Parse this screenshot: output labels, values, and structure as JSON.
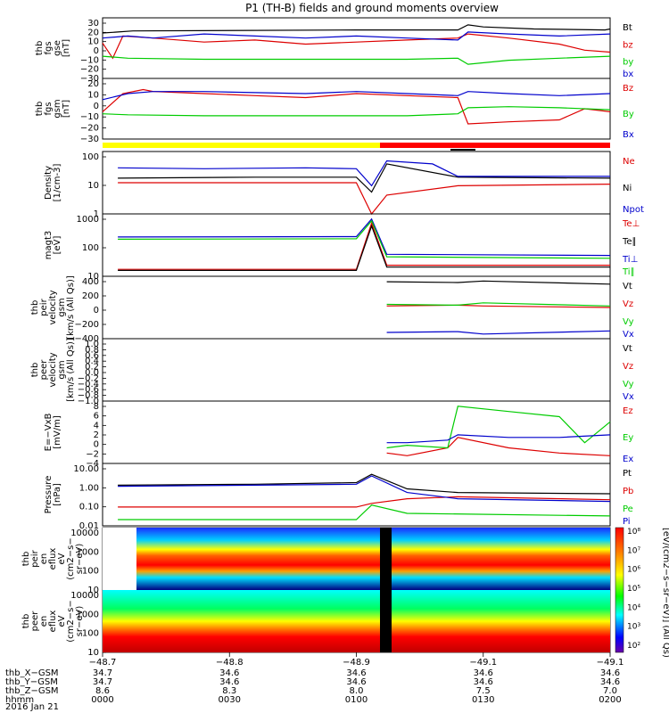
{
  "title": "P1 (TH-B) fields and ground moments overview",
  "chart_data": [
    {
      "type": "line",
      "panel": "fgs_gse",
      "ylabel": [
        "thb",
        "fgs",
        "gse",
        "[nT]"
      ],
      "ytick_labels": [
        "30",
        "20",
        "10",
        "0",
        "−10",
        "−20",
        "−30"
      ],
      "ylim": [
        -30,
        30
      ],
      "series": [
        {
          "name": "Bt",
          "color": "#000000",
          "x": [
            0.0,
            0.03,
            0.06,
            0.5,
            0.7,
            0.72,
            0.75,
            0.85,
            0.99,
            1.0
          ],
          "y": [
            15,
            16,
            17,
            18,
            18,
            23,
            21,
            19,
            18,
            19
          ]
        },
        {
          "name": "bz",
          "color": "#dd0000",
          "x": [
            0.0,
            0.02,
            0.04,
            0.1,
            0.2,
            0.3,
            0.4,
            0.5,
            0.6,
            0.7,
            0.72,
            0.8,
            0.9,
            0.95,
            1.0
          ],
          "y": [
            5,
            -10,
            12,
            10,
            6,
            8,
            4,
            6,
            8,
            10,
            14,
            10,
            4,
            -2,
            -4
          ]
        },
        {
          "name": "by",
          "color": "#00cc00",
          "x": [
            0.0,
            0.05,
            0.2,
            0.4,
            0.5,
            0.6,
            0.7,
            0.72,
            0.8,
            0.9,
            1.0
          ],
          "y": [
            -8,
            -10,
            -11,
            -11,
            -11,
            -11,
            -10,
            -16,
            -12,
            -10,
            -8
          ]
        },
        {
          "name": "bx",
          "color": "#0000cc",
          "x": [
            0.0,
            0.05,
            0.1,
            0.2,
            0.3,
            0.4,
            0.5,
            0.6,
            0.7,
            0.72,
            0.8,
            0.9,
            1.0
          ],
          "y": [
            10,
            12,
            10,
            14,
            12,
            10,
            12,
            10,
            8,
            16,
            14,
            12,
            14
          ]
        }
      ]
    },
    {
      "type": "line",
      "panel": "fgs_gsm",
      "ylabel": [
        "thb",
        "fgs",
        "gsm",
        "[nT]"
      ],
      "ytick_labels": [
        "20",
        "10",
        "0",
        "−10",
        "−20",
        "−30"
      ],
      "ylim": [
        -35,
        25
      ],
      "series": [
        {
          "name": "Bz",
          "color": "#dd0000",
          "x": [
            0.0,
            0.04,
            0.08,
            0.1,
            0.2,
            0.3,
            0.4,
            0.5,
            0.6,
            0.7,
            0.72,
            0.8,
            0.9,
            0.95,
            1.0
          ],
          "y": [
            -8,
            10,
            14,
            12,
            10,
            8,
            6,
            10,
            8,
            6,
            -20,
            -18,
            -16,
            -5,
            -8
          ]
        },
        {
          "name": "By",
          "color": "#00cc00",
          "x": [
            0.0,
            0.05,
            0.2,
            0.4,
            0.5,
            0.6,
            0.7,
            0.72,
            0.8,
            0.9,
            1.0
          ],
          "y": [
            -10,
            -11,
            -12,
            -12,
            -12,
            -12,
            -10,
            -4,
            -3,
            -4,
            -6
          ]
        },
        {
          "name": "Bx",
          "color": "#0000cc",
          "x": [
            0.0,
            0.05,
            0.1,
            0.2,
            0.3,
            0.4,
            0.5,
            0.6,
            0.7,
            0.72,
            0.8,
            0.9,
            1.0
          ],
          "y": [
            4,
            10,
            12,
            12,
            11,
            10,
            12,
            10,
            8,
            12,
            10,
            8,
            10
          ]
        }
      ]
    },
    {
      "type": "line",
      "panel": "density",
      "ylabel": [
        "Density",
        "[1/cm-3]"
      ],
      "yscale": "log",
      "ytick_labels": [
        "100",
        "10",
        "1"
      ],
      "ylim": [
        1,
        100
      ],
      "series": [
        {
          "name": "Ne",
          "color": "#dd0000",
          "x": [
            0.03,
            0.5,
            0.53,
            0.56,
            0.7,
            1.0
          ],
          "y": [
            10,
            10,
            1,
            4,
            8,
            9
          ]
        },
        {
          "name": "Ni",
          "color": "#000000",
          "x": [
            0.03,
            0.3,
            0.5,
            0.53,
            0.56,
            0.7,
            1.0
          ],
          "y": [
            14,
            15,
            15,
            5,
            40,
            15,
            14
          ]
        },
        {
          "name": "Npot",
          "color": "#0000cc",
          "x": [
            0.03,
            0.2,
            0.4,
            0.5,
            0.53,
            0.56,
            0.65,
            0.7,
            1.0
          ],
          "y": [
            30,
            28,
            30,
            28,
            8,
            50,
            40,
            16,
            16
          ]
        }
      ]
    },
    {
      "type": "line",
      "panel": "temperature",
      "ylabel": [
        "magt3",
        "[eV]"
      ],
      "yscale": "log",
      "ytick_labels": [
        "1000",
        "100",
        "10"
      ],
      "ylim": [
        10,
        5000
      ],
      "series": [
        {
          "name": "Te⊥",
          "color": "#dd0000",
          "x": [
            0.03,
            0.5,
            0.53,
            0.56,
            1.0
          ],
          "y": [
            20,
            20,
            2000,
            30,
            30
          ]
        },
        {
          "name": "Te∥",
          "color": "#000000",
          "x": [
            0.03,
            0.5,
            0.53,
            0.56,
            1.0
          ],
          "y": [
            18,
            18,
            1500,
            25,
            25
          ]
        },
        {
          "name": "Ti⊥",
          "color": "#0000cc",
          "x": [
            0.03,
            0.5,
            0.53,
            0.56,
            1.0
          ],
          "y": [
            500,
            520,
            3000,
            90,
            80
          ]
        },
        {
          "name": "Ti∥",
          "color": "#00cc00",
          "x": [
            0.03,
            0.5,
            0.53,
            0.56,
            1.0
          ],
          "y": [
            400,
            420,
            2500,
            70,
            60
          ]
        }
      ]
    },
    {
      "type": "line",
      "panel": "peir_velocity",
      "ylabel": [
        "thb",
        "peir",
        "velocity",
        "gsm",
        "[km/s (All Qs)]"
      ],
      "ytick_labels": [
        "400",
        "200",
        "0",
        "−200",
        "−400"
      ],
      "ylim": [
        -400,
        400
      ],
      "series": [
        {
          "name": "Vt",
          "color": "#000000",
          "x": [
            0.56,
            0.7,
            0.75,
            1.0
          ],
          "y": [
            330,
            320,
            340,
            300
          ]
        },
        {
          "name": "Vz",
          "color": "#dd0000",
          "x": [
            0.56,
            0.7,
            0.75,
            1.0
          ],
          "y": [
            20,
            30,
            20,
            0
          ]
        },
        {
          "name": "Vy",
          "color": "#00cc00",
          "x": [
            0.56,
            0.7,
            0.75,
            1.0
          ],
          "y": [
            40,
            30,
            60,
            20
          ]
        },
        {
          "name": "Vx",
          "color": "#0000cc",
          "x": [
            0.56,
            0.7,
            0.75,
            1.0
          ],
          "y": [
            -320,
            -310,
            -340,
            -300
          ]
        }
      ]
    },
    {
      "type": "line",
      "panel": "peer_velocity",
      "ylabel": [
        "thb",
        "peer",
        "velocity",
        "gsm",
        "[km/s (All Qs)]"
      ],
      "ytick_labels": [
        "1.0",
        "0.8",
        "0.6",
        "0.4",
        "0.2",
        "0.0",
        "−0.2",
        "−0.4",
        "−0.6",
        "−0.8",
        "−1.0"
      ],
      "ylim": [
        -1,
        1
      ],
      "series": [
        {
          "name": "Vt",
          "color": "#000000"
        },
        {
          "name": "Vz",
          "color": "#dd0000"
        },
        {
          "name": "Vy",
          "color": "#00cc00"
        },
        {
          "name": "Vx",
          "color": "#0000cc"
        }
      ]
    },
    {
      "type": "line",
      "panel": "efield",
      "ylabel": [
        "E=−VxB",
        "[mV/m]"
      ],
      "ytick_labels": [
        "8",
        "6",
        "4",
        "2",
        "0",
        "−2",
        "−4"
      ],
      "ylim": [
        -4,
        8
      ],
      "series": [
        {
          "name": "Ez",
          "color": "#dd0000",
          "x": [
            0.56,
            0.6,
            0.68,
            0.7,
            0.8,
            0.9,
            1.0
          ],
          "y": [
            -2,
            -2.5,
            -1,
            1,
            -1,
            -2,
            -2.5
          ]
        },
        {
          "name": "Ey",
          "color": "#00cc00",
          "x": [
            0.56,
            0.6,
            0.68,
            0.7,
            0.8,
            0.9,
            0.95,
            1.0
          ],
          "y": [
            -1,
            -0.5,
            -1,
            7,
            6,
            5,
            0,
            4
          ]
        },
        {
          "name": "Ex",
          "color": "#0000cc",
          "x": [
            0.56,
            0.6,
            0.68,
            0.7,
            0.8,
            0.9,
            1.0
          ],
          "y": [
            0,
            0,
            0.5,
            1.5,
            1,
            1,
            1.5
          ]
        }
      ]
    },
    {
      "type": "line",
      "panel": "pressure",
      "ylabel": [
        "Pressure",
        "[nPa]"
      ],
      "yscale": "log",
      "ytick_labels": [
        "10.00",
        "1.00",
        "0.10",
        "0.01"
      ],
      "ylim": [
        0.01,
        10
      ],
      "series": [
        {
          "name": "Pt",
          "color": "#000000",
          "x": [
            0.03,
            0.3,
            0.5,
            0.53,
            0.6,
            0.7,
            1.0
          ],
          "y": [
            0.9,
            1.0,
            1.2,
            3.0,
            0.6,
            0.4,
            0.35
          ]
        },
        {
          "name": "Pb",
          "color": "#dd0000",
          "x": [
            0.03,
            0.5,
            0.53,
            0.6,
            0.7,
            1.0
          ],
          "y": [
            0.08,
            0.08,
            0.12,
            0.2,
            0.25,
            0.18
          ]
        },
        {
          "name": "Pe",
          "color": "#00cc00",
          "x": [
            0.03,
            0.5,
            0.53,
            0.6,
            1.0
          ],
          "y": [
            0.02,
            0.02,
            0.1,
            0.04,
            0.03
          ]
        },
        {
          "name": "Pi",
          "color": "#0000cc",
          "x": [
            0.03,
            0.3,
            0.5,
            0.53,
            0.6,
            0.7,
            1.0
          ],
          "y": [
            0.8,
            0.9,
            1.0,
            2.5,
            0.4,
            0.2,
            0.15
          ]
        }
      ]
    },
    {
      "type": "heatmap",
      "panel": "peir_spectrogram",
      "ylabel": [
        "thb",
        "peir",
        "en",
        "eflux",
        "eV",
        "(cm2−s−",
        "sr−eV)"
      ],
      "yscale": "log",
      "ytick_labels": [
        "10000",
        "1000",
        "100",
        "10"
      ]
    },
    {
      "type": "heatmap",
      "panel": "peer_spectrogram",
      "ylabel": [
        "thb",
        "peer",
        "en",
        "eflux",
        "eV",
        "(cm2−s−",
        "sr−eV)"
      ],
      "yscale": "log",
      "ytick_labels": [
        "10000",
        "1000",
        "100",
        "10"
      ]
    }
  ],
  "colorbar": {
    "tick_labels": [
      "10⁸",
      "10⁷",
      "10⁶",
      "10⁵",
      "10⁴",
      "10³",
      "10²"
    ],
    "label": "[eV/(cm2−s−sr−eV)] (All Qs)"
  },
  "xaxis": {
    "tick_values": [
      "−48.7",
      "−48.8",
      "−48.9",
      "−49.1",
      "−49.1"
    ],
    "rows": [
      {
        "label": "thb_X−GSM",
        "values": [
          "34.7",
          "34.6",
          "34.6",
          "34.6",
          "34.6"
        ]
      },
      {
        "label": "thb_Y−GSM",
        "values": [
          "34.7",
          "34.6",
          "34.6",
          "34.6",
          "34.6"
        ]
      },
      {
        "label": "thb_Z−GSM",
        "values": [
          "8.6",
          "8.3",
          "8.0",
          "7.5",
          "7.0"
        ]
      },
      {
        "label": "hhmm",
        "values": [
          "0000",
          "0030",
          "0100",
          "0130",
          "0200"
        ]
      }
    ],
    "date": "2016 Jan 21"
  }
}
